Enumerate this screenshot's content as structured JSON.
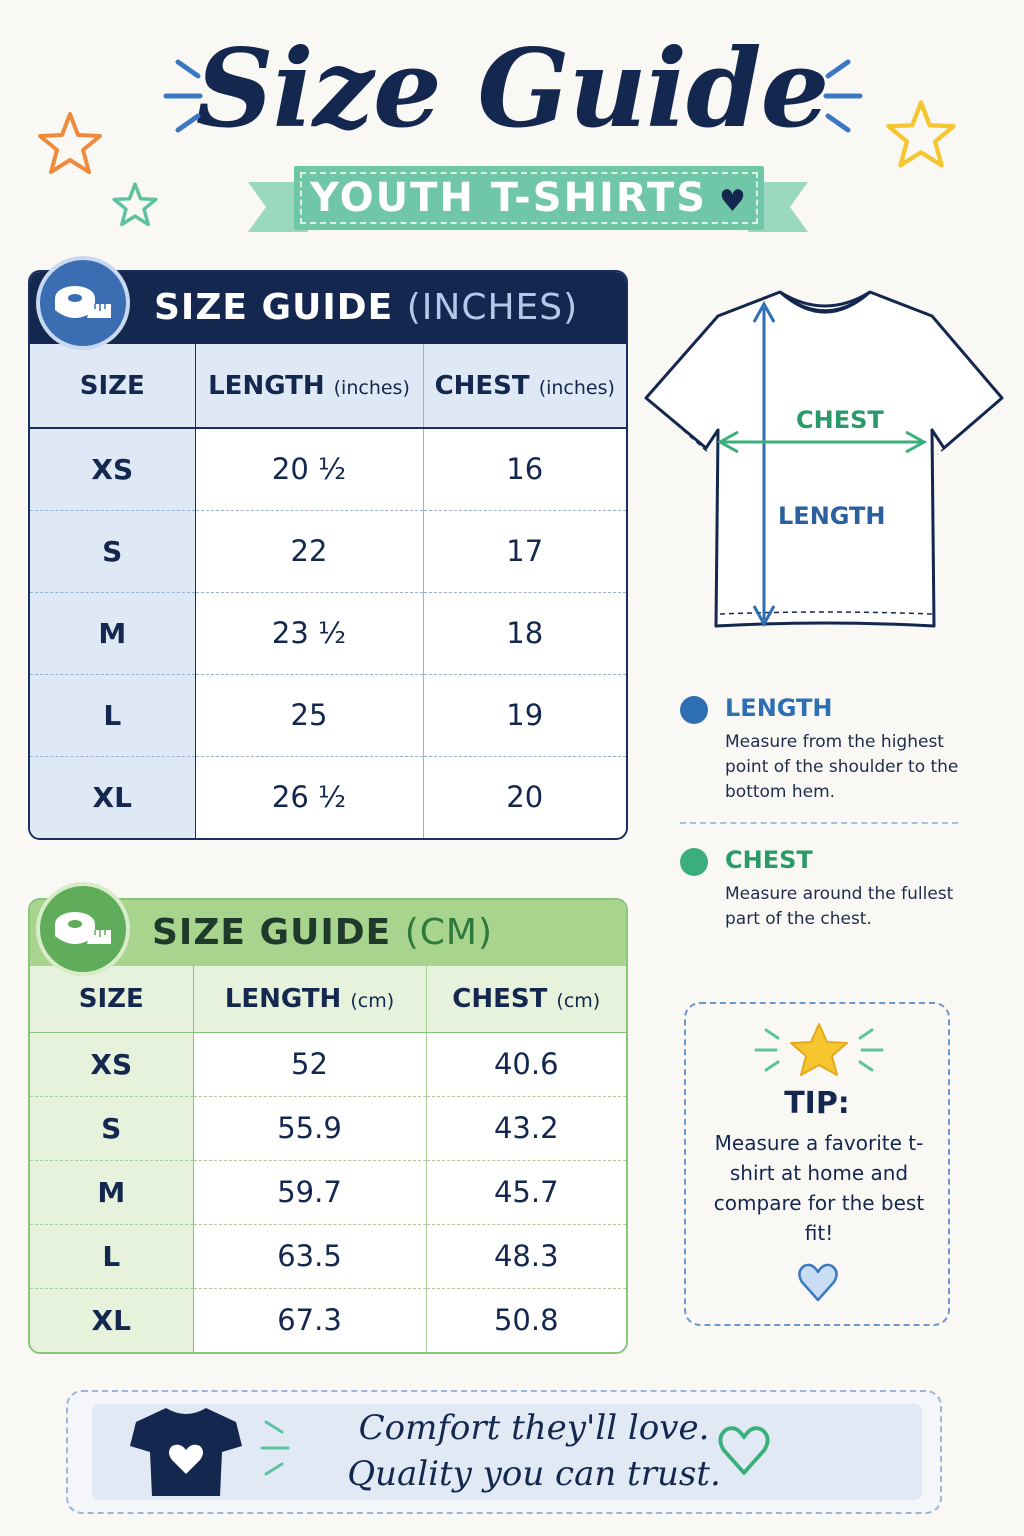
{
  "header": {
    "title": "Size Guide",
    "subtitle": "YOUTH T-SHIRTS"
  },
  "inches_table": {
    "heading": "SIZE GUIDE",
    "heading_unit": "(INCHES)",
    "columns": [
      {
        "label": "SIZE",
        "unit": ""
      },
      {
        "label": "LENGTH",
        "unit": "(inches)"
      },
      {
        "label": "CHEST",
        "unit": "(inches)"
      }
    ],
    "rows": [
      {
        "size": "XS",
        "length": "20 ½",
        "chest": "16"
      },
      {
        "size": "S",
        "length": "22",
        "chest": "17"
      },
      {
        "size": "M",
        "length": "23 ½",
        "chest": "18"
      },
      {
        "size": "L",
        "length": "25",
        "chest": "19"
      },
      {
        "size": "XL",
        "length": "26 ½",
        "chest": "20"
      }
    ]
  },
  "cm_table": {
    "heading": "SIZE GUIDE",
    "heading_unit": "(CM)",
    "columns": [
      {
        "label": "SIZE",
        "unit": ""
      },
      {
        "label": "LENGTH",
        "unit": "(cm)"
      },
      {
        "label": "CHEST",
        "unit": "(cm)"
      }
    ],
    "rows": [
      {
        "size": "XS",
        "length": "52",
        "chest": "40.6"
      },
      {
        "size": "S",
        "length": "55.9",
        "chest": "43.2"
      },
      {
        "size": "M",
        "length": "59.7",
        "chest": "45.7"
      },
      {
        "size": "L",
        "length": "63.5",
        "chest": "48.3"
      },
      {
        "size": "XL",
        "length": "67.3",
        "chest": "50.8"
      }
    ]
  },
  "diagram": {
    "chest_label": "CHEST",
    "length_label": "LENGTH"
  },
  "legend": {
    "length": {
      "title": "LENGTH",
      "desc": "Measure from the highest point of the shoulder to the bottom hem."
    },
    "chest": {
      "title": "CHEST",
      "desc": "Measure around the fullest part of the chest."
    }
  },
  "tip": {
    "title": "TIP:",
    "text": "Measure a favorite t-shirt at home and compare for the best fit!"
  },
  "footer": {
    "line1": "Comfort they'll love.",
    "line2": "Quality you can trust."
  },
  "icons": [
    "star-icon",
    "heart-icon",
    "measuring-tape-icon",
    "t-shirt-icon"
  ],
  "colors": {
    "navy": "#13274f",
    "mint": "#6fc7a7",
    "blue": "#2e6fb3",
    "green": "#3aaf7b",
    "light_green": "#a9d48e",
    "star_yellow": "#f6c630",
    "star_orange": "#ee8a3c"
  }
}
